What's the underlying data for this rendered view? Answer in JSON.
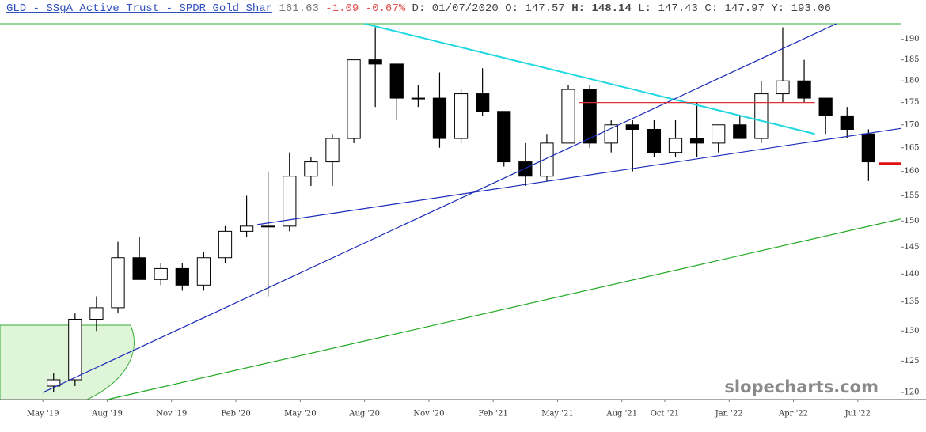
{
  "header": {
    "symbol": "GLD - SSgA Active Trust - SPDR Gold Shar",
    "price": 161.63,
    "change": -1.09,
    "change_pct": "-0.67%",
    "fields": [
      {
        "label": "D:",
        "value": "01/07/2020"
      },
      {
        "label": "O:",
        "value": 147.57
      },
      {
        "label": "H:",
        "value": 148.14,
        "bold": true
      },
      {
        "label": "L:",
        "value": 147.43
      },
      {
        "label": "C:",
        "value": 147.97
      },
      {
        "label": "Y:",
        "value": 193.06
      }
    ]
  },
  "chart_data": {
    "type": "candlestick",
    "watermark": "slopecharts.com",
    "log_scale": true,
    "x": [
      "2019-05",
      "2019-06",
      "2019-07",
      "2019-08",
      "2019-09",
      "2019-10",
      "2019-11",
      "2019-12",
      "2020-01",
      "2020-02",
      "2020-03",
      "2020-04",
      "2020-05",
      "2020-06",
      "2020-07",
      "2020-08",
      "2020-09",
      "2020-10",
      "2020-11",
      "2020-12",
      "2021-01",
      "2021-02",
      "2021-03",
      "2021-04",
      "2021-05",
      "2021-06",
      "2021-07",
      "2021-08",
      "2021-09",
      "2021-10",
      "2021-11",
      "2021-12",
      "2022-01",
      "2022-02",
      "2022-03",
      "2022-04",
      "2022-05",
      "2022-06",
      "2022-07"
    ],
    "open": [
      121,
      122,
      132,
      134,
      143,
      139,
      141,
      138,
      143,
      148,
      149,
      149,
      159,
      162,
      167,
      185,
      184,
      176,
      176,
      167,
      177,
      173,
      162,
      159,
      166,
      178,
      166,
      170,
      169,
      164,
      167,
      166,
      170,
      167,
      177,
      180,
      176,
      172,
      168
    ],
    "high": [
      123,
      133,
      136,
      146,
      147,
      142,
      142,
      144,
      149,
      155,
      160,
      164,
      163,
      168,
      185,
      193,
      184,
      179,
      182,
      178,
      183,
      173,
      166,
      168,
      179,
      179,
      171,
      171,
      171,
      171,
      175,
      170,
      172,
      180,
      193,
      185,
      176,
      174,
      169
    ],
    "low": [
      120,
      121,
      130,
      133,
      139,
      138,
      137,
      137,
      142,
      147,
      136,
      148,
      157,
      157,
      166,
      174,
      171,
      174,
      165,
      166,
      172,
      161,
      157,
      158,
      166,
      165,
      164,
      160,
      163,
      163,
      163,
      164,
      167,
      166,
      175,
      175,
      168,
      167,
      158
    ],
    "close": [
      122,
      132,
      134,
      143,
      139,
      141,
      138,
      143,
      148,
      149,
      149,
      159,
      162,
      167,
      185,
      184,
      176,
      176,
      167,
      177,
      173,
      162,
      159,
      166,
      178,
      166,
      170,
      169,
      164,
      167,
      166,
      170,
      167,
      177,
      180,
      176,
      172,
      169,
      162
    ],
    "up_color": "#ffffff",
    "down_color": "#000000",
    "xlim": [
      "2019-03",
      "2022-09"
    ],
    "xticks": [
      {
        "value": "2019-05",
        "label": "May '19"
      },
      {
        "value": "2019-08",
        "label": "Aug '19"
      },
      {
        "value": "2019-11",
        "label": "Nov '19"
      },
      {
        "value": "2020-02",
        "label": "Feb '20"
      },
      {
        "value": "2020-05",
        "label": "May '20"
      },
      {
        "value": "2020-08",
        "label": "Aug '20"
      },
      {
        "value": "2020-11",
        "label": "Nov '20"
      },
      {
        "value": "2021-02",
        "label": "Feb '21"
      },
      {
        "value": "2021-05",
        "label": "May '21"
      },
      {
        "value": "2021-08",
        "label": "Aug '21"
      },
      {
        "value": "2021-10",
        "label": "Oct '21"
      },
      {
        "value": "2022-01",
        "label": "Jan '22"
      },
      {
        "value": "2022-04",
        "label": "Apr '22"
      },
      {
        "value": "2022-07",
        "label": "Jul '22"
      }
    ],
    "ylim": [
      118.9,
      193.9
    ],
    "yticks": [
      120,
      125,
      130,
      135,
      140,
      145,
      150,
      155,
      160,
      165,
      170,
      175,
      180,
      185,
      190
    ],
    "lines": [
      {
        "color": "#20d8e0",
        "width": 2,
        "x": [
          "2020-08",
          "2022-05"
        ],
        "y": [
          193.9,
          168
        ]
      },
      {
        "color": "#1a2ab8",
        "width": 1.2,
        "x": [
          "2019-05",
          "2022-06"
        ],
        "y": [
          120,
          193.9
        ]
      },
      {
        "color": "#1a2ab8",
        "width": 1.2,
        "x": [
          "2020-03",
          "2022-09"
        ],
        "y": [
          149.3,
          169.2
        ]
      },
      {
        "color": "#22aa22",
        "width": 1.2,
        "x": [
          "2019-08",
          "2022-09"
        ],
        "y": [
          118.9,
          150.4
        ]
      },
      {
        "color": "#e03030",
        "width": 1.2,
        "x": [
          "2021-06",
          "2022-05"
        ],
        "y": [
          175,
          175
        ]
      },
      {
        "color": "#e01010",
        "width": 3,
        "x": [
          "2022-08",
          "2022-09"
        ],
        "y": [
          161.63,
          161.63
        ]
      }
    ]
  }
}
